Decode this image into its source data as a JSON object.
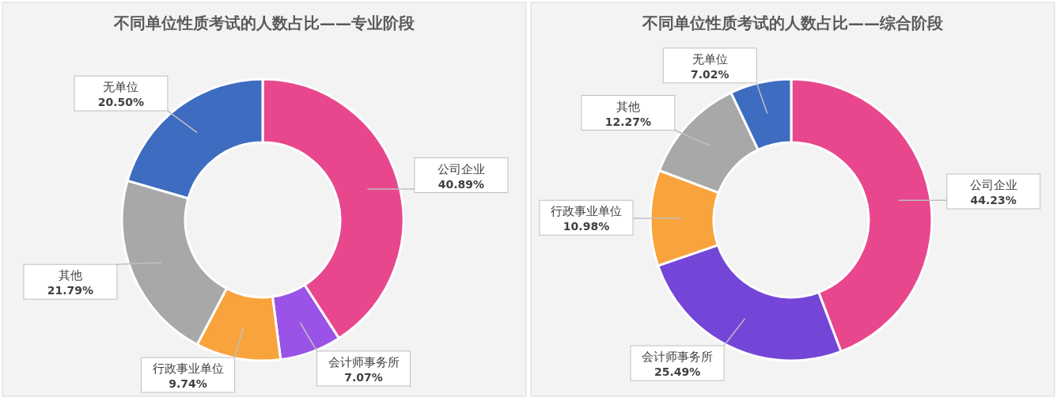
{
  "chart_data": [
    {
      "type": "donut",
      "title": "不同单位性质考试的人数占比——专业阶段",
      "categories": [
        "公司企业",
        "会计师事务所",
        "行政事业单位",
        "其他",
        "无单位"
      ],
      "values": [
        40.89,
        7.07,
        9.74,
        21.79,
        20.5
      ],
      "value_labels": [
        "40.89%",
        "7.07%",
        "9.74%",
        "21.79%",
        "20.50%"
      ],
      "colors": [
        "#e8478e",
        "#9b52e6",
        "#f9a33c",
        "#a8a8a8",
        "#3d6cc0"
      ]
    },
    {
      "type": "donut",
      "title": "不同单位性质考试的人数占比——综合阶段",
      "categories": [
        "公司企业",
        "会计师事务所",
        "行政事业单位",
        "其他",
        "无单位"
      ],
      "values": [
        44.23,
        25.49,
        10.98,
        12.27,
        7.02
      ],
      "value_labels": [
        "44.23%",
        "25.49%",
        "10.98%",
        "12.27%",
        "7.02%"
      ],
      "colors": [
        "#e8478e",
        "#7446d8",
        "#f9a33c",
        "#a8a8a8",
        "#3d6cc0"
      ]
    }
  ]
}
